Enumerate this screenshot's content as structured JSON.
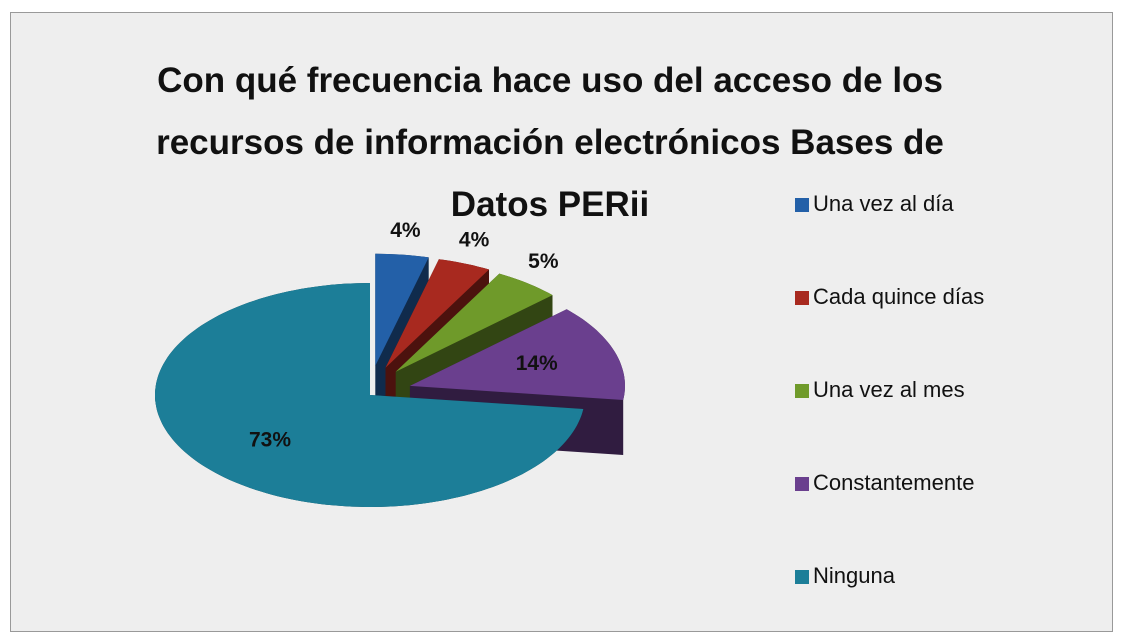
{
  "chart_data": {
    "type": "pie",
    "title": "Con qué frecuencia hace uso del acceso de los recursos de información electrónicos Bases de Datos PERii",
    "categories": [
      "Una vez al día",
      "Cada quince días",
      "Una vez al mes",
      "Constantemente",
      "Ninguna"
    ],
    "values": [
      4,
      4,
      5,
      14,
      73
    ],
    "value_labels": [
      "4%",
      "4%",
      "5%",
      "14%",
      "73%"
    ],
    "colors": [
      "#2360a8",
      "#a8291f",
      "#6f9a2a",
      "#6a3f8e",
      "#1c7e98"
    ],
    "legend": "right"
  }
}
